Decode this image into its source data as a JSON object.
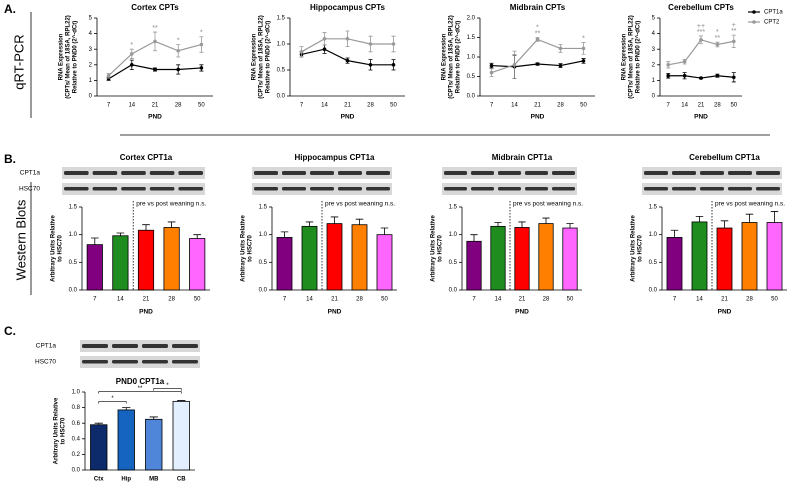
{
  "labels": {
    "panel_a": "A.",
    "panel_b": "B.",
    "panel_c": "C.",
    "side_a": "qRT-PCR",
    "side_b": "Western Blots"
  },
  "chart_data": [
    {
      "type": "line",
      "title": "Cortex CPTs",
      "x_label": "PND",
      "y_label": [
        "RNA Expression",
        "(CPTs/ Mean of 18SA, RPL22)",
        "Relative to PND0 (2^-dCt)"
      ],
      "categories": [
        "7",
        "14",
        "21",
        "28",
        "50"
      ],
      "series": [
        {
          "color": "#000000",
          "values": [
            1.1,
            2.0,
            1.7,
            1.7,
            1.8
          ],
          "errors": [
            0.1,
            0.3,
            0.1,
            0.3,
            0.2
          ]
        },
        {
          "color": "#999999",
          "values": [
            1.3,
            2.7,
            3.5,
            2.9,
            3.3
          ],
          "errors": [
            0.15,
            0.3,
            0.6,
            0.4,
            0.5
          ]
        }
      ],
      "ylim": [
        0,
        5
      ],
      "yticks": [
        0,
        1,
        2,
        3,
        4,
        5
      ],
      "annotations": [
        {
          "category": "14",
          "lines": [
            "*"
          ]
        },
        {
          "category": "21",
          "lines": [
            "**"
          ]
        },
        {
          "category": "28",
          "lines": [
            "*"
          ]
        },
        {
          "category": "50",
          "lines": [
            "*"
          ]
        }
      ]
    },
    {
      "type": "line",
      "title": "Hippocampus CPTs",
      "x_label": "PND",
      "y_label": [
        "RNA Expression",
        "(CPTs/ Mean of 18SA, RPL22)",
        "Relative to PND0 (2^-dCt)"
      ],
      "categories": [
        "7",
        "14",
        "21",
        "28",
        "50"
      ],
      "series": [
        {
          "color": "#000000",
          "values": [
            0.8,
            0.9,
            0.68,
            0.6,
            0.6
          ],
          "errors": [
            0.05,
            0.08,
            0.05,
            0.1,
            0.1
          ]
        },
        {
          "color": "#999999",
          "values": [
            0.85,
            1.1,
            1.1,
            1.0,
            1.0
          ],
          "errors": [
            0.1,
            0.12,
            0.15,
            0.15,
            0.15
          ]
        }
      ],
      "ylim": [
        0,
        1.5
      ],
      "yticks": [
        {
          "value": 0,
          "label": "0.0"
        },
        {
          "value": 0.5,
          "label": "0.5"
        },
        {
          "value": 1,
          "label": "1.0"
        },
        {
          "value": 1.5,
          "label": "1.5"
        }
      ]
    },
    {
      "type": "line",
      "title": "Midbrain CPTs",
      "x_label": "PND",
      "y_label": [
        "RNA Expression",
        "(CPTs/ Mean of 18SA, RPL22)",
        "Relative to PND0 (2^-dCt)"
      ],
      "categories": [
        "7",
        "14",
        "21",
        "28",
        "50"
      ],
      "series": [
        {
          "color": "#000000",
          "values": [
            0.78,
            0.75,
            0.82,
            0.78,
            0.9
          ],
          "errors": [
            0.06,
            0.3,
            0.03,
            0.05,
            0.06
          ]
        },
        {
          "color": "#999999",
          "values": [
            0.6,
            0.8,
            1.45,
            1.22,
            1.22
          ],
          "errors": [
            0.1,
            0.35,
            0.05,
            0.1,
            0.15
          ]
        }
      ],
      "ylim": [
        0,
        2
      ],
      "yticks": [
        {
          "value": 0,
          "label": "0.0"
        },
        {
          "value": 0.5,
          "label": "0.5"
        },
        {
          "value": 1,
          "label": "1.0"
        },
        {
          "value": 1.5,
          "label": "1.5"
        },
        {
          "value": 2,
          "label": "2.0"
        }
      ],
      "annotations": [
        {
          "category": "21",
          "lines": [
            "*",
            "**"
          ]
        },
        {
          "category": "50",
          "lines": [
            "*"
          ]
        }
      ]
    },
    {
      "type": "line",
      "title": "Cerebellum CPTs",
      "x_label": "PND",
      "y_label": [
        "RNA Expression",
        "(CPTs/ Mean of 18SA, RPL22)",
        "Relative to PND0 (2^-dCt)"
      ],
      "categories": [
        "7",
        "14",
        "21",
        "28",
        "50"
      ],
      "series": [
        {
          "name": "CPT1a",
          "color": "#000000",
          "values": [
            1.3,
            1.3,
            1.15,
            1.3,
            1.2
          ],
          "errors": [
            0.15,
            0.2,
            0.05,
            0.1,
            0.3
          ]
        },
        {
          "name": "CPT2",
          "color": "#999999",
          "values": [
            2.0,
            2.2,
            3.6,
            3.3,
            3.5
          ],
          "errors": [
            0.2,
            0.15,
            0.25,
            0.15,
            0.4
          ]
        }
      ],
      "ylim": [
        0,
        5
      ],
      "yticks": [
        0,
        1,
        2,
        3,
        4,
        5
      ],
      "legend": "top-right",
      "annotations": [
        {
          "category": "21",
          "lines": [
            "++",
            "***"
          ]
        },
        {
          "category": "28",
          "lines": [
            "*",
            "**"
          ]
        },
        {
          "category": "50",
          "lines": [
            "+",
            "**"
          ]
        }
      ]
    },
    {
      "type": "bar",
      "title": "Cortex CPT1a",
      "blot_labels": [
        "CPT1a",
        "HSC70"
      ],
      "x_label": "PND",
      "y_label": [
        "Arbitrary Units Relative",
        "to HSC70"
      ],
      "categories": [
        "7",
        "14",
        "21",
        "28",
        "50"
      ],
      "values": [
        0.82,
        0.98,
        1.08,
        1.13,
        0.93
      ],
      "errors": [
        0.12,
        0.05,
        0.1,
        0.1,
        0.07
      ],
      "colors": [
        "#800080",
        "#1e8c1e",
        "#ff0000",
        "#ff8000",
        "#ff66ff"
      ],
      "annotation": "pre vs post weaning n.s.",
      "ylim": [
        0,
        1.5
      ],
      "yticks": [
        {
          "value": 0,
          "label": "0.0"
        },
        {
          "value": 0.5,
          "label": "0.5"
        },
        {
          "value": 1,
          "label": "1.0"
        },
        {
          "value": 1.5,
          "label": "1.5"
        }
      ]
    },
    {
      "type": "bar",
      "title": "Hippocampus CPT1a",
      "x_label": "PND",
      "y_label": [
        "Arbitrary Units Relative",
        "to HSC70"
      ],
      "categories": [
        "7",
        "14",
        "21",
        "28",
        "50"
      ],
      "values": [
        0.95,
        1.15,
        1.2,
        1.18,
        1.0
      ],
      "errors": [
        0.1,
        0.08,
        0.12,
        0.1,
        0.12
      ],
      "colors": [
        "#800080",
        "#1e8c1e",
        "#ff0000",
        "#ff8000",
        "#ff66ff"
      ],
      "annotation": "pre vs post weaning n.s.",
      "ylim": [
        0,
        1.5
      ],
      "yticks": [
        {
          "value": 0,
          "label": "0.0"
        },
        {
          "value": 0.5,
          "label": "0.5"
        },
        {
          "value": 1,
          "label": "1.0"
        },
        {
          "value": 1.5,
          "label": "1.5"
        }
      ]
    },
    {
      "type": "bar",
      "title": "Midbrain CPT1a",
      "x_label": "PND",
      "y_label": [
        "Arbitrary Units Relative",
        "to HSC70"
      ],
      "categories": [
        "7",
        "14",
        "21",
        "28",
        "50"
      ],
      "values": [
        0.88,
        1.15,
        1.13,
        1.2,
        1.12
      ],
      "errors": [
        0.12,
        0.07,
        0.1,
        0.1,
        0.08
      ],
      "colors": [
        "#800080",
        "#1e8c1e",
        "#ff0000",
        "#ff8000",
        "#ff66ff"
      ],
      "annotation": "pre vs post weaning n.s.",
      "ylim": [
        0,
        1.5
      ],
      "yticks": [
        {
          "value": 0,
          "label": "0.0"
        },
        {
          "value": 0.5,
          "label": "0.5"
        },
        {
          "value": 1,
          "label": "1.0"
        },
        {
          "value": 1.5,
          "label": "1.5"
        }
      ]
    },
    {
      "type": "bar",
      "title": "Cerebellum CPT1a",
      "x_label": "PND",
      "y_label": [
        "Arbitrary Units Relative",
        "to HSC70"
      ],
      "categories": [
        "7",
        "14",
        "21",
        "28",
        "50"
      ],
      "values": [
        0.95,
        1.23,
        1.12,
        1.22,
        1.22
      ],
      "errors": [
        0.13,
        0.1,
        0.13,
        0.15,
        0.2
      ],
      "colors": [
        "#800080",
        "#1e8c1e",
        "#ff0000",
        "#ff8000",
        "#ff66ff"
      ],
      "annotation": "pre vs post weaning n.s.",
      "ylim": [
        0,
        1.5
      ],
      "yticks": [
        {
          "value": 0,
          "label": "0.0"
        },
        {
          "value": 0.5,
          "label": "0.5"
        },
        {
          "value": 1,
          "label": "1.0"
        },
        {
          "value": 1.5,
          "label": "1.5"
        }
      ]
    },
    {
      "type": "bar",
      "title": "PND0 CPT1a",
      "blot_labels": [
        "CPT1a",
        "HSC70"
      ],
      "y_label": [
        "Arbitrary Units Relative",
        "to HSC70"
      ],
      "categories": [
        "Ctx",
        "Hip",
        "MB",
        "CB"
      ],
      "values": [
        0.58,
        0.77,
        0.65,
        0.88
      ],
      "errors": [
        0.02,
        0.03,
        0.03,
        0.01
      ],
      "colors": [
        "#0d2a6b",
        "#1565c0",
        "#4f86d9",
        "#e3eeff"
      ],
      "ylim": [
        0,
        1
      ],
      "yticks": [
        {
          "value": 0,
          "label": "0.0"
        },
        {
          "value": 0.2,
          "label": "0.2"
        },
        {
          "value": 0.4,
          "label": "0.4"
        },
        {
          "value": 0.6,
          "label": "0.6"
        },
        {
          "value": 0.8,
          "label": "0.8"
        },
        {
          "value": 1,
          "label": "1.0"
        }
      ],
      "brackets": [
        {
          "from": "Ctx",
          "to": "Hip",
          "text": "*"
        },
        {
          "from": "Ctx",
          "to": "CB",
          "text": "**"
        },
        {
          "from": "MB",
          "to": "CB",
          "text": "*"
        }
      ]
    }
  ]
}
